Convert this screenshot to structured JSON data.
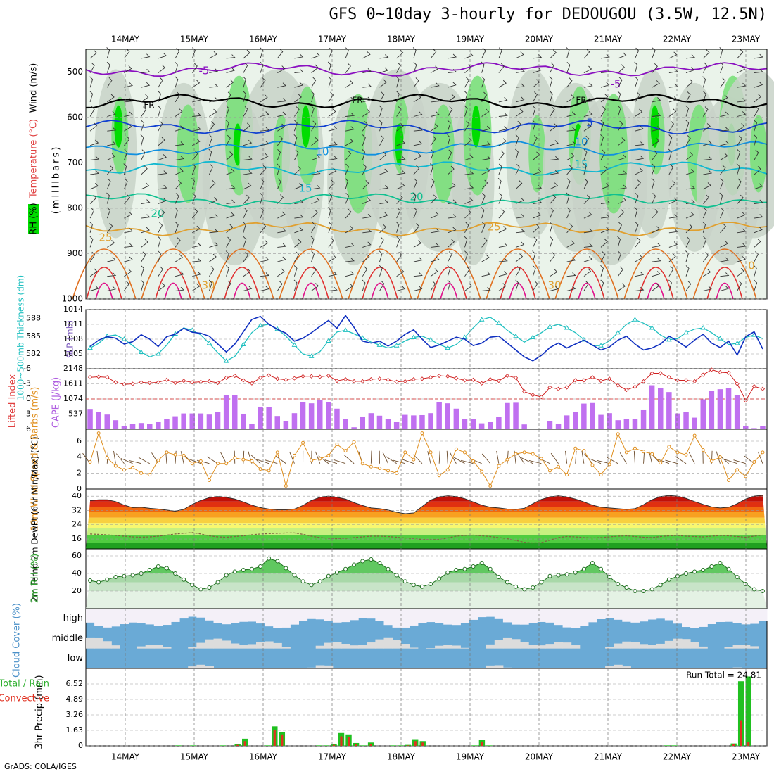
{
  "title": "GFS 0~10day 3-hourly for DEDOUGOU (3.5W, 12.5N)",
  "footer": "GrADS: COLA/IGES",
  "run_total_label": "Run Total = 24.81",
  "colors": {
    "rh_fill": "#00dd00",
    "rh_grey": "#c8d2c8",
    "cape_bar": "#c070f0",
    "thickness": "#20c0c0",
    "slp": "#1030c0",
    "lifted_index": "#d02020",
    "wind10": "#e09020",
    "rain": "#20c020",
    "convective": "#e03020",
    "cloud": "#6aaad6",
    "cloud_clear": "#f4f0f8",
    "cloud_gap": "#dcdcdc"
  },
  "chart_data": [
    {
      "type": "heatmap",
      "id": "upper_air",
      "title": "",
      "ylabel_parts": [
        "RH (%)",
        "Temperature (°C)",
        "Wind (m/s)",
        "(millibars)"
      ],
      "x_tick_labels": [
        "14MAY",
        "15MAY",
        "16MAY",
        "17MAY",
        "18MAY",
        "19MAY",
        "20MAY",
        "21MAY",
        "22MAY",
        "23MAY"
      ],
      "y_tick_labels": [
        "500",
        "600",
        "700",
        "800",
        "900",
        "1000"
      ],
      "ylim": [
        1000,
        450
      ],
      "isotherm_labels": [
        "-5",
        "-5",
        "FR",
        "FR",
        "FR",
        "5",
        "10",
        "10",
        "15",
        "15",
        "20",
        "20",
        "25",
        "25",
        "30",
        "30",
        "0"
      ],
      "isotherms": [
        {
          "label": "-5",
          "color": "#8a10c0",
          "pressure": 495
        },
        {
          "label": "FR",
          "color": "#000000",
          "pressure": 565
        },
        {
          "label": "5",
          "color": "#1040d0",
          "pressure": 622
        },
        {
          "label": "10",
          "color": "#1090e0",
          "pressure": 668
        },
        {
          "label": "15",
          "color": "#10b8d0",
          "pressure": 712
        },
        {
          "label": "20",
          "color": "#10c090",
          "pressure": 782
        },
        {
          "label": "25",
          "color": "#e0a030",
          "pressure": 845
        }
      ]
    },
    {
      "type": "line",
      "id": "thickness_slp",
      "ylabel_left": "1000~500mb Thickness (dm)",
      "ylabel_right": "SLP (mb)",
      "left_ticks": [
        "588",
        "585",
        "582"
      ],
      "right_ticks": [
        "1014",
        "1011",
        "1008",
        "1005"
      ],
      "ylim_left": [
        579.5,
        589.5
      ],
      "ylim_right": [
        1002,
        1014
      ],
      "series": [
        {
          "name": "1000~500mb Thickness (dm)",
          "values": [
            583.0,
            583.8,
            585.0,
            585.2,
            584.5,
            583.4,
            582.3,
            581.5,
            582.0,
            583.5,
            585.4,
            586.4,
            586.0,
            585.2,
            583.8,
            582.2,
            580.8,
            581.6,
            583.6,
            585.6,
            586.8,
            587.0,
            586.2,
            585.0,
            583.5,
            582.0,
            581.6,
            582.4,
            584.2,
            585.7,
            586.0,
            585.4,
            584.7,
            584.0,
            583.5,
            583.0,
            583.4,
            584.2,
            584.8,
            585.0,
            584.4,
            583.6,
            583.0,
            583.6,
            584.8,
            586.4,
            587.8,
            588.2,
            587.2,
            586.0,
            585.0,
            584.0,
            584.8,
            585.6,
            586.6,
            587.0,
            586.4,
            585.6,
            584.4,
            583.4,
            583.4,
            584.2,
            585.6,
            587.0,
            587.8,
            587.2,
            586.4,
            585.2,
            584.4,
            584.6,
            585.6,
            586.2,
            586.4,
            585.6,
            584.6,
            583.6,
            583.8,
            584.8,
            585.2,
            584.6
          ]
        },
        {
          "name": "SLP (mb)",
          "values": [
            1006.5,
            1007.8,
            1008.5,
            1008.2,
            1007.0,
            1007.5,
            1008.9,
            1008.0,
            1006.5,
            1008.5,
            1009.0,
            1010.2,
            1009.4,
            1009.2,
            1008.6,
            1007.0,
            1005.4,
            1007.0,
            1009.5,
            1012.0,
            1012.6,
            1011.0,
            1010.0,
            1009.2,
            1007.6,
            1008.2,
            1009.3,
            1010.6,
            1011.8,
            1010.2,
            1012.8,
            1010.4,
            1007.6,
            1007.2,
            1007.6,
            1006.6,
            1007.6,
            1009.0,
            1009.9,
            1008.0,
            1006.3,
            1006.8,
            1007.6,
            1008.4,
            1008.0,
            1006.7,
            1007.2,
            1008.4,
            1008.6,
            1007.2,
            1005.8,
            1004.4,
            1003.6,
            1004.7,
            1006.3,
            1007.2,
            1006.2,
            1007.0,
            1007.8,
            1006.8,
            1005.8,
            1006.4,
            1007.8,
            1008.6,
            1007.0,
            1005.8,
            1006.2,
            1007.0,
            1008.6,
            1007.6,
            1006.4,
            1007.8,
            1009.0,
            1007.2,
            1006.3,
            1007.6,
            1004.8,
            1008.5,
            1009.5,
            1006.0
          ]
        }
      ]
    },
    {
      "type": "bar",
      "id": "cape_lifted_index",
      "ylabel_left": "Lifted Index",
      "ylabel_right": "CAPE (J/kg)",
      "left_ticks": [
        "-6",
        "-3",
        "0",
        "3",
        "6"
      ],
      "right_ticks": [
        "2148",
        "1611",
        "1074",
        "537"
      ],
      "ylim_cape": [
        0,
        2148
      ],
      "ylim_lifted_index": [
        6,
        -6
      ],
      "series": [
        {
          "name": "CAPE (J/kg)",
          "values": [
            720,
            600,
            520,
            320,
            100,
            190,
            220,
            180,
            250,
            360,
            460,
            560,
            560,
            560,
            520,
            620,
            1200,
            1200,
            550,
            200,
            800,
            780,
            470,
            290,
            570,
            960,
            920,
            1050,
            960,
            730,
            360,
            70,
            450,
            570,
            480,
            350,
            250,
            510,
            490,
            500,
            570,
            960,
            920,
            730,
            350,
            350,
            210,
            250,
            430,
            930,
            940,
            170,
            20,
            10,
            290,
            200,
            490,
            620,
            910,
            930,
            510,
            570,
            320,
            350,
            350,
            700,
            1560,
            1470,
            1320,
            560,
            610,
            410,
            1060,
            1360,
            1420,
            1470,
            1200,
            110,
            40,
            100
          ]
        },
        {
          "name": "Lifted Index",
          "values": [
            -4.3,
            -4.4,
            -4.3,
            -3.3,
            -2.9,
            -3.0,
            -3.3,
            -3.2,
            -3.3,
            -3.8,
            -3.2,
            -3.6,
            -3.3,
            -3.4,
            -3.5,
            -3.2,
            -4.2,
            -4.6,
            -3.7,
            -3.1,
            -4.2,
            -4.7,
            -4.0,
            -3.8,
            -4.1,
            -4.5,
            -4.5,
            -4.4,
            -4.6,
            -3.6,
            -3.9,
            -3.5,
            -3.5,
            -3.9,
            -4.0,
            -3.8,
            -3.4,
            -3.5,
            -3.9,
            -4.0,
            -4.3,
            -4.6,
            -4.5,
            -4.1,
            -3.7,
            -3.8,
            -3.1,
            -3.9,
            -3.6,
            -4.6,
            -4.2,
            -1.5,
            -0.8,
            -0.4,
            -2.3,
            -2.0,
            -2.3,
            -3.7,
            -3.7,
            -4.3,
            -3.6,
            -4.0,
            -2.7,
            -1.8,
            -2.4,
            -3.5,
            -5.1,
            -5.1,
            -4.3,
            -3.7,
            -3.7,
            -3.5,
            -4.8,
            -5.8,
            -5.3,
            -5.2,
            -3.0,
            0.3,
            -2.5,
            -2.0
          ]
        }
      ]
    },
    {
      "type": "line",
      "id": "wind10m",
      "ylabel": "10m Wind Speed & Barbs (m/s)",
      "left_ticks": [
        "6",
        "4",
        "2",
        "0"
      ],
      "ylim": [
        0,
        7.5
      ],
      "series": [
        {
          "name": "10m Wind Speed (m/s)",
          "values": [
            3.4,
            7.0,
            3.9,
            2.9,
            2.4,
            2.7,
            2.0,
            1.8,
            3.6,
            4.6,
            4.3,
            4.2,
            3.2,
            3.5,
            1.1,
            3.2,
            3.2,
            3.9,
            3.7,
            3.5,
            2.5,
            2.3,
            4.6,
            0.4,
            4.2,
            5.8,
            3.6,
            3.8,
            4.2,
            5.6,
            4.8,
            5.9,
            3.2,
            2.8,
            2.6,
            2.3,
            2.0,
            4.6,
            3.7,
            7.0,
            4.6,
            1.7,
            2.4,
            5.0,
            4.6,
            3.5,
            2.2,
            0.4,
            2.9,
            3.7,
            4.4,
            4.6,
            4.4,
            3.8,
            2.3,
            2.8,
            1.8,
            5.1,
            4.8,
            3.0,
            1.8,
            3.1,
            6.9,
            4.6,
            5.1,
            4.7,
            4.4,
            3.3,
            5.3,
            4.6,
            4.3,
            6.7,
            4.9,
            3.5,
            4.0,
            1.1,
            2.4,
            1.6,
            3.4,
            4.6
          ]
        }
      ]
    },
    {
      "type": "area",
      "id": "temp2m",
      "ylabel": "2m Temp 2m DewPt (6hr Min/Max) (°C)",
      "left_ticks": [
        "40",
        "32",
        "24",
        "16"
      ],
      "ylim": [
        10.5,
        44
      ],
      "series": [
        {
          "name": "2m Temp (°C)",
          "values": [
            37.5,
            38.0,
            38.0,
            37.0,
            35.0,
            33.6,
            33.8,
            33.2,
            32.8,
            32.2,
            31.6,
            32.6,
            35.4,
            37.6,
            39.2,
            39.8,
            39.4,
            38.4,
            36.8,
            35.0,
            33.6,
            32.8,
            32.4,
            32.4,
            32.8,
            34.8,
            37.6,
            39.4,
            40.0,
            39.4,
            38.4,
            36.4,
            34.8,
            33.4,
            33.0,
            32.2,
            31.0,
            30.2,
            30.6,
            34.2,
            37.8,
            39.6,
            40.2,
            39.8,
            38.6,
            36.8,
            35.0,
            33.8,
            33.4,
            32.8,
            32.6,
            33.2,
            35.8,
            38.2,
            39.6,
            40.2,
            39.6,
            38.4,
            36.8,
            35.0,
            33.8,
            33.4,
            33.0,
            32.6,
            33.0,
            35.2,
            38.0,
            39.8,
            40.4,
            40.0,
            38.8,
            37.0,
            35.4,
            34.0,
            33.4,
            33.8,
            35.8,
            38.4,
            40.0,
            40.6
          ]
        },
        {
          "name": "2m DewPt (°C)",
          "values": [
            18.8,
            18.6,
            18.4,
            18.0,
            17.6,
            17.2,
            17.0,
            17.2,
            17.6,
            18.2,
            18.8,
            19.2,
            19.6,
            18.8,
            17.8,
            17.2,
            17.0,
            17.4,
            17.8,
            18.4,
            18.8,
            19.0,
            19.2,
            19.4,
            19.4,
            18.6,
            17.6,
            16.8,
            16.4,
            16.2,
            16.4,
            16.8,
            17.2,
            17.6,
            17.6,
            17.4,
            17.0,
            16.6,
            16.2,
            15.8,
            15.6,
            15.8,
            16.6,
            17.6,
            18.0,
            18.2,
            17.8,
            17.4,
            16.8,
            16.2,
            15.2,
            14.2,
            13.8,
            14.0,
            15.4,
            16.8,
            17.4,
            17.2,
            16.8,
            16.6,
            16.8,
            17.2,
            17.6,
            17.8,
            17.4,
            17.0,
            16.8,
            17.4,
            17.8,
            18.0,
            17.6,
            17.4,
            17.2,
            17.6,
            18.0,
            17.8,
            17.4,
            17.0,
            17.6,
            18.2
          ]
        }
      ]
    },
    {
      "type": "area",
      "id": "rh2m",
      "ylabel": "2m RH (%)",
      "left_ticks": [
        "60",
        "40",
        "20"
      ],
      "ylim": [
        0,
        68
      ],
      "series": [
        {
          "name": "2m RH (%)",
          "values": [
            32,
            30,
            33,
            36,
            37,
            38,
            40,
            44,
            48,
            46,
            40,
            33,
            27,
            22,
            24,
            30,
            38,
            42,
            44,
            45,
            48,
            57,
            54,
            46,
            38,
            31,
            27,
            31,
            37,
            41,
            45,
            50,
            54,
            56,
            52,
            45,
            38,
            31,
            27,
            25,
            28,
            34,
            41,
            44,
            45,
            48,
            52,
            45,
            36,
            30,
            25,
            22,
            24,
            30,
            37,
            38,
            39,
            41,
            45,
            52,
            45,
            36,
            28,
            24,
            20,
            20,
            22,
            27,
            33,
            37,
            40,
            42,
            44,
            48,
            52,
            45,
            36,
            28,
            22,
            20
          ]
        }
      ]
    },
    {
      "type": "heatmap",
      "id": "cloud_cover",
      "ylabel": "Cloud Cover (%)",
      "layers": [
        "high",
        "middle",
        "low"
      ]
    },
    {
      "type": "bar",
      "id": "precip",
      "ylabel": "3hr Precip (mm)",
      "left_label": "Total / Rain",
      "left_label2": "Convective",
      "left_ticks": [
        "6.52",
        "4.89",
        "3.26",
        "1.63",
        "0"
      ],
      "ylim": [
        0,
        8.15
      ],
      "x_tick_labels": [
        "14MAY",
        "15MAY",
        "16MAY",
        "17MAY",
        "18MAY",
        "19MAY",
        "20MAY",
        "21MAY",
        "22MAY",
        "23MAY"
      ],
      "series": [
        {
          "name": "Total / Rain",
          "values": [
            0,
            0,
            0,
            0,
            0,
            0,
            0,
            0,
            0,
            0,
            0,
            0,
            0.05,
            0,
            0.05,
            0,
            0,
            0,
            0.05,
            0,
            0.2,
            0.75,
            0,
            0,
            0.05,
            2.05,
            1.45,
            0,
            0,
            0,
            0,
            0.05,
            0.05,
            0.15,
            1.35,
            1.2,
            0.3,
            0.05,
            0.35,
            0,
            0,
            0.05,
            0.05,
            0.1,
            0.7,
            0.5,
            0,
            0,
            0,
            0,
            0,
            0,
            0.05,
            0.6,
            0.05,
            0,
            0,
            0,
            0,
            0,
            0,
            0,
            0,
            0,
            0,
            0,
            0,
            0,
            0,
            0,
            0,
            0,
            0,
            0,
            0,
            0,
            0,
            0,
            0.05,
            0.05,
            0,
            0,
            0,
            0,
            0,
            0,
            0,
            0.25,
            6.8,
            7.3,
            0,
            0
          ]
        },
        {
          "name": "Convective",
          "values": [
            0,
            0,
            0,
            0,
            0,
            0,
            0,
            0,
            0,
            0,
            0,
            0,
            0,
            0,
            0,
            0,
            0,
            0,
            0,
            0,
            0.1,
            0.5,
            0,
            0,
            0,
            1.7,
            1.2,
            0,
            0,
            0,
            0,
            0,
            0,
            0.1,
            1.0,
            0.9,
            0.2,
            0,
            0.2,
            0,
            0,
            0,
            0,
            0.05,
            0.5,
            0.35,
            0,
            0,
            0,
            0,
            0,
            0,
            0,
            0.45,
            0,
            0,
            0,
            0,
            0,
            0,
            0,
            0,
            0,
            0,
            0,
            0,
            0,
            0,
            0,
            0,
            0,
            0,
            0,
            0,
            0,
            0,
            0,
            0,
            0,
            0,
            0,
            0,
            0,
            0,
            0,
            0,
            0,
            0.15,
            2.7,
            0.4,
            0,
            0
          ]
        }
      ]
    }
  ]
}
